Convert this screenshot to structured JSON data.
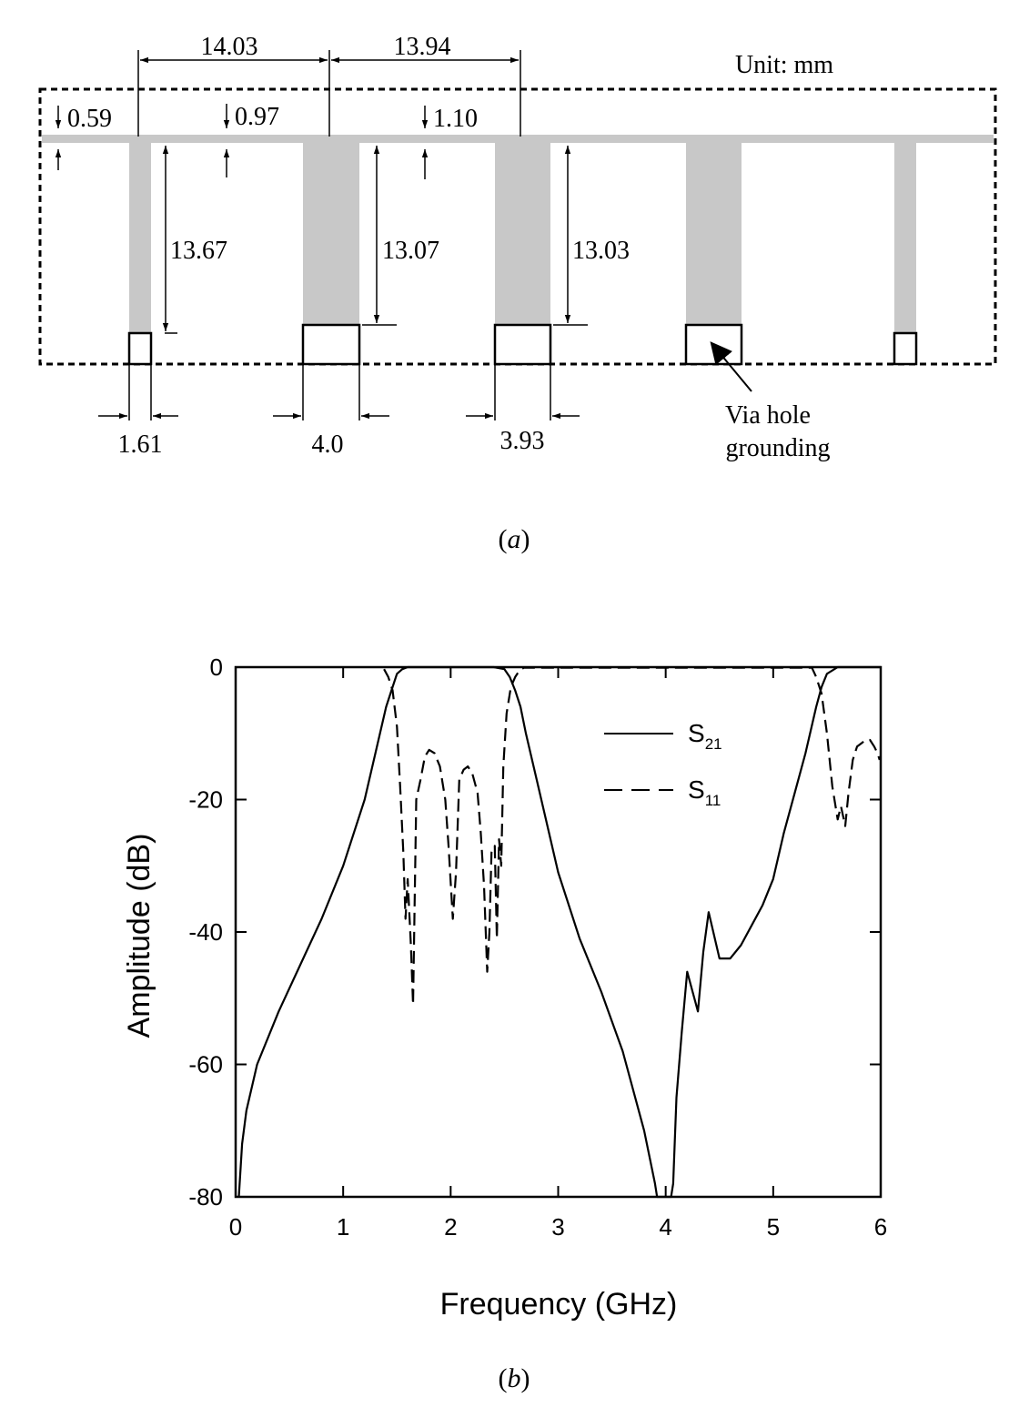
{
  "panel_a": {
    "label": "a",
    "unit_note": "Unit: mm",
    "dimensions": {
      "spacing_1": "14.03",
      "spacing_2": "13.94",
      "line_width_1": "0.59",
      "line_width_2": "0.97",
      "line_width_3": "1.10",
      "stub_length_1": "13.67",
      "stub_length_2": "13.07",
      "stub_length_3": "13.03",
      "stub_width_1": "1.61",
      "stub_width_2": "4.0",
      "stub_width_3": "3.93"
    },
    "via_note_line1": "Via hole",
    "via_note_line2": "grounding",
    "colors": {
      "metal": "#c8c8c8",
      "outline": "#000000"
    }
  },
  "panel_b": {
    "label": "b",
    "chart_data": {
      "type": "line",
      "xlabel": "Frequency (GHz)",
      "ylabel": "Amplitude (dB)",
      "xlim": [
        0,
        6
      ],
      "ylim": [
        -80,
        0
      ],
      "xticks": [
        0,
        1,
        2,
        3,
        4,
        5,
        6
      ],
      "yticks": [
        0,
        -20,
        -40,
        -60,
        -80
      ],
      "legend": "top-right",
      "grid": false,
      "series": [
        {
          "name": "S21",
          "name_base": "S",
          "name_sub": "21",
          "style": "solid",
          "x": [
            0.03,
            0.06,
            0.1,
            0.2,
            0.4,
            0.6,
            0.8,
            1.0,
            1.2,
            1.3,
            1.4,
            1.45,
            1.5,
            1.55,
            1.6,
            1.7,
            1.8,
            2.0,
            2.2,
            2.4,
            2.5,
            2.55,
            2.6,
            2.65,
            2.7,
            2.8,
            3.0,
            3.2,
            3.4,
            3.6,
            3.8,
            3.9,
            3.92,
            3.96,
            3.98,
            4.05,
            4.07,
            4.1,
            4.15,
            4.2,
            4.3,
            4.35,
            4.4,
            4.5,
            4.6,
            4.7,
            4.8,
            4.9,
            5.0,
            5.1,
            5.2,
            5.3,
            5.4,
            5.45,
            5.5,
            5.6,
            5.7,
            5.8,
            5.9,
            6.0
          ],
          "values": [
            -80,
            -72,
            -67,
            -60,
            -52,
            -45,
            -38,
            -30,
            -20,
            -13,
            -6,
            -3.5,
            -1,
            -0.3,
            0,
            0,
            0,
            0,
            0,
            0,
            -0.3,
            -1.5,
            -3.5,
            -6,
            -10,
            -17,
            -31,
            -41,
            -49,
            -58,
            -70,
            -78,
            -80,
            -80,
            -80,
            -80,
            -78,
            -65,
            -55,
            -46,
            -52,
            -43,
            -37,
            -44,
            -44,
            -42,
            -39,
            -36,
            -32,
            -25,
            -19,
            -13,
            -6,
            -3,
            -1,
            0,
            0,
            0,
            0,
            0
          ]
        },
        {
          "name": "S11",
          "name_base": "S",
          "name_sub": "11",
          "style": "dashed",
          "x": [
            1.38,
            1.42,
            1.46,
            1.5,
            1.53,
            1.56,
            1.58,
            1.6,
            1.63,
            1.65,
            1.68,
            1.72,
            1.76,
            1.8,
            1.85,
            1.9,
            1.95,
            1.98,
            2.02,
            2.05,
            2.08,
            2.12,
            2.16,
            2.2,
            2.25,
            2.28,
            2.31,
            2.34,
            2.36,
            2.38,
            2.41,
            2.43,
            2.45,
            2.47,
            2.49,
            2.52,
            2.56,
            2.6,
            2.64,
            2.68,
            5.36,
            5.4,
            5.45,
            5.5,
            5.55,
            5.6,
            5.63,
            5.67,
            5.7,
            5.74,
            5.78,
            5.82,
            5.86,
            5.9,
            5.94,
            5.97,
            5.99
          ],
          "values": [
            -0.3,
            -1.5,
            -3.5,
            -9,
            -18,
            -28,
            -38,
            -32,
            -42,
            -51,
            -20,
            -17,
            -13.5,
            -12.5,
            -13,
            -15,
            -20,
            -27,
            -38,
            -31,
            -17,
            -15.5,
            -15,
            -16,
            -19,
            -25,
            -33,
            -46,
            -40,
            -28,
            -27,
            -41,
            -26,
            -30,
            -15,
            -7,
            -3,
            -1.5,
            -0.5,
            -0.1,
            -0.1,
            -1.5,
            -4,
            -10,
            -18,
            -23,
            -21,
            -24,
            -19,
            -14,
            -12,
            -11.5,
            -11,
            -11,
            -12,
            -13,
            -14
          ]
        }
      ]
    }
  }
}
